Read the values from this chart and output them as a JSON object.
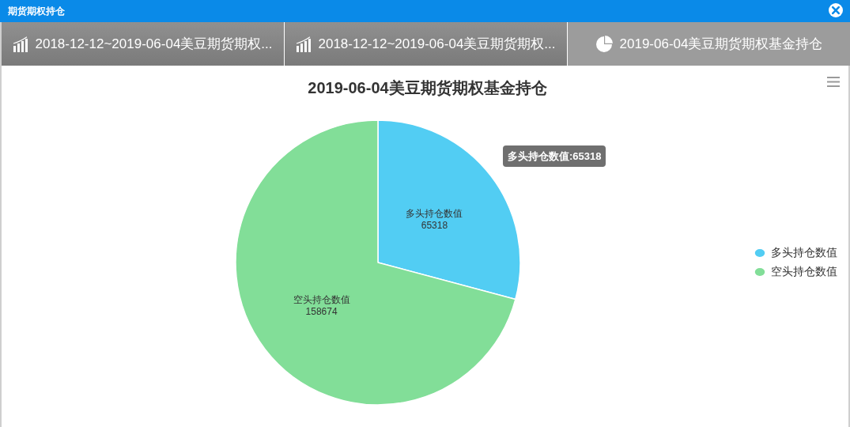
{
  "chart_data": {
    "type": "pie",
    "title": "2019-06-04美豆期货期权基金持仓",
    "categories": [
      "多头持仓数值",
      "空头持仓数值"
    ],
    "values": [
      65318,
      158674
    ],
    "colors": [
      "#52cdf3",
      "#82de98"
    ],
    "data_labels": true,
    "legend": "right",
    "annotations": [
      "期货期权持仓",
      "2018-12-12~2019-06-04美豆期货期权...",
      "2018-12-12~2019-06-04美豆期货期权...",
      "2019-06-04美豆期货期权基金持仓",
      "多头持仓数值:65318"
    ]
  }
}
